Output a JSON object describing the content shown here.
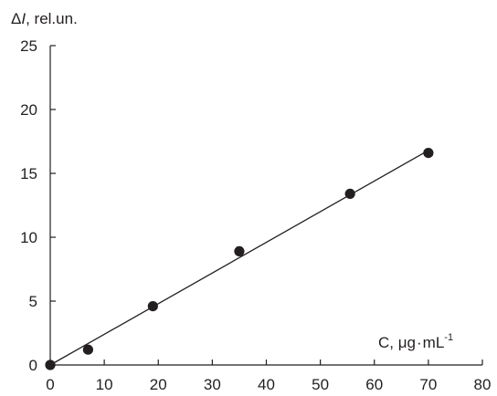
{
  "chart_data": {
    "type": "scatter",
    "title": "",
    "ylabel": {
      "prefix": "Δ",
      "var": "I",
      "suffix": ", rel.un."
    },
    "xlabel": {
      "prefix": "C, ",
      "mu": "μ",
      "g": "g",
      "dot": "·",
      "unit": "mL",
      "exp": "-1"
    },
    "xlim": [
      0,
      80
    ],
    "ylim": [
      0,
      25
    ],
    "x_ticks": [
      0,
      10,
      20,
      30,
      40,
      50,
      60,
      70,
      80
    ],
    "y_ticks": [
      0,
      5,
      10,
      15,
      20,
      25
    ],
    "grid": false,
    "series": [
      {
        "points": [
          {
            "x": 0,
            "y": 0
          },
          {
            "x": 7,
            "y": 1.2
          },
          {
            "x": 19,
            "y": 4.6
          },
          {
            "x": 35,
            "y": 8.9
          },
          {
            "x": 55.5,
            "y": 13.4
          },
          {
            "x": 70,
            "y": 16.6
          }
        ],
        "marker": "filled-circle",
        "color": "#231f20"
      }
    ],
    "fit_line": {
      "x": [
        0,
        70
      ],
      "y": [
        0,
        16.8
      ]
    }
  }
}
